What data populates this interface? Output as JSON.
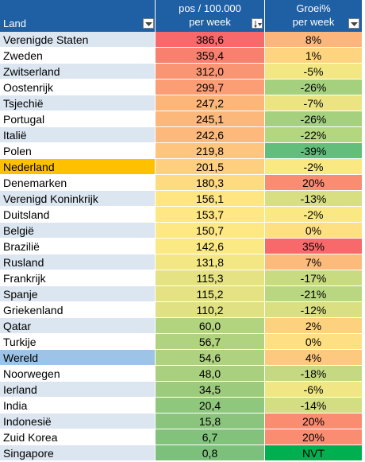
{
  "header": {
    "land": "Land",
    "pos_line1": "pos / 100.000",
    "pos_line2": "per week",
    "groei_line1": "Groei%",
    "groei_line2": "per week"
  },
  "rows": [
    {
      "land": "Verenigde Staten",
      "pos": "386,6",
      "groei": "8%",
      "land_bg": "#dce6f1",
      "pos_bg": "#f8696b",
      "groei_bg": "#fcb57a"
    },
    {
      "land": "Zweden",
      "pos": "359,4",
      "groei": "1%",
      "land_bg": "#ffffff",
      "pos_bg": "#f8806f",
      "groei_bg": "#fed480"
    },
    {
      "land": "Zwitserland",
      "pos": "312,0",
      "groei": "-5%",
      "land_bg": "#dce6f1",
      "pos_bg": "#fa9573",
      "groei_bg": "#f3e783"
    },
    {
      "land": "Oostenrijk",
      "pos": "299,7",
      "groei": "-26%",
      "land_bg": "#ffffff",
      "pos_bg": "#fb9d75",
      "groei_bg": "#a5d17e"
    },
    {
      "land": "Tsjechië",
      "pos": "247,2",
      "groei": "-7%",
      "land_bg": "#dce6f1",
      "pos_bg": "#fcb67a",
      "groei_bg": "#ece483"
    },
    {
      "land": "Portugal",
      "pos": "245,1",
      "groei": "-26%",
      "land_bg": "#ffffff",
      "pos_bg": "#fcb87b",
      "groei_bg": "#a5d17e"
    },
    {
      "land": "Italië",
      "pos": "242,6",
      "groei": "-22%",
      "land_bg": "#dce6f1",
      "pos_bg": "#fcb97b",
      "groei_bg": "#b4d67f"
    },
    {
      "land": "Polen",
      "pos": "219,8",
      "groei": "-39%",
      "land_bg": "#ffffff",
      "pos_bg": "#fdc57d",
      "groei_bg": "#63be7b"
    },
    {
      "land": "Nederland",
      "pos": "201,5",
      "groei": "-2%",
      "land_bg": "#ffc000",
      "pos_bg": "#fecf7f",
      "groei_bg": "#fae983"
    },
    {
      "land": "Denemarken",
      "pos": "180,3",
      "groei": "20%",
      "land_bg": "#ffffff",
      "pos_bg": "#feda81",
      "groei_bg": "#fa8c71"
    },
    {
      "land": "Verenigd Koninkrijk",
      "pos": "156,1",
      "groei": "-13%",
      "land_bg": "#dce6f1",
      "pos_bg": "#ffe683",
      "groei_bg": "#d7df82"
    },
    {
      "land": "Duitsland",
      "pos": "153,7",
      "groei": "-2%",
      "land_bg": "#ffffff",
      "pos_bg": "#ffe784",
      "groei_bg": "#fae983"
    },
    {
      "land": "België",
      "pos": "150,7",
      "groei": "0%",
      "land_bg": "#dce6f1",
      "pos_bg": "#fee884",
      "groei_bg": "#fedf82"
    },
    {
      "land": "Brazilië",
      "pos": "142,6",
      "groei": "35%",
      "land_bg": "#ffffff",
      "pos_bg": "#fbe983",
      "groei_bg": "#f8696b"
    },
    {
      "land": "Rusland",
      "pos": "131,8",
      "groei": "7%",
      "land_bg": "#dce6f1",
      "pos_bg": "#f2e783",
      "groei_bg": "#fcbb7b"
    },
    {
      "land": "Frankrijk",
      "pos": "115,3",
      "groei": "-17%",
      "land_bg": "#ffffff",
      "pos_bg": "#e4e282",
      "groei_bg": "#c8db81"
    },
    {
      "land": "Spanje",
      "pos": "115,2",
      "groei": "-21%",
      "land_bg": "#dce6f1",
      "pos_bg": "#e4e282",
      "groei_bg": "#b8d780"
    },
    {
      "land": "Griekenland",
      "pos": "110,2",
      "groei": "-12%",
      "land_bg": "#ffffff",
      "pos_bg": "#e0e182",
      "groei_bg": "#dae082"
    },
    {
      "land": "Qatar",
      "pos": "60,0",
      "groei": "2%",
      "land_bg": "#dce6f1",
      "pos_bg": "#b3d47f",
      "groei_bg": "#fdd27f"
    },
    {
      "land": "Turkije",
      "pos": "56,7",
      "groei": "0%",
      "land_bg": "#ffffff",
      "pos_bg": "#b0d37f",
      "groei_bg": "#fedf82"
    },
    {
      "land": "Wereld",
      "pos": "54,6",
      "groei": "4%",
      "land_bg": "#9dc3e6",
      "pos_bg": "#aed27f",
      "groei_bg": "#fdc97e"
    },
    {
      "land": "Noorwegen",
      "pos": "48,0",
      "groei": "-18%",
      "land_bg": "#ffffff",
      "pos_bg": "#a8d07e",
      "groei_bg": "#c4d981"
    },
    {
      "land": "Ierland",
      "pos": "34,5",
      "groei": "-6%",
      "land_bg": "#dce6f1",
      "pos_bg": "#9dcb7e",
      "groei_bg": "#f0e683"
    },
    {
      "land": "India",
      "pos": "20,4",
      "groei": "-14%",
      "land_bg": "#ffffff",
      "pos_bg": "#8fc77d",
      "groei_bg": "#d3de82"
    },
    {
      "land": "Indonesië",
      "pos": "15,8",
      "groei": "20%",
      "land_bg": "#dce6f1",
      "pos_bg": "#8bc57d",
      "groei_bg": "#fa8c71"
    },
    {
      "land": "Zuid Korea",
      "pos": "6,7",
      "groei": "20%",
      "land_bg": "#ffffff",
      "pos_bg": "#82c27c",
      "groei_bg": "#fa8c71"
    },
    {
      "land": "Singapore",
      "pos": "0,8",
      "groei": "NVT",
      "land_bg": "#dce6f1",
      "pos_bg": "#7dc07c",
      "groei_bg": "#00b050"
    }
  ]
}
